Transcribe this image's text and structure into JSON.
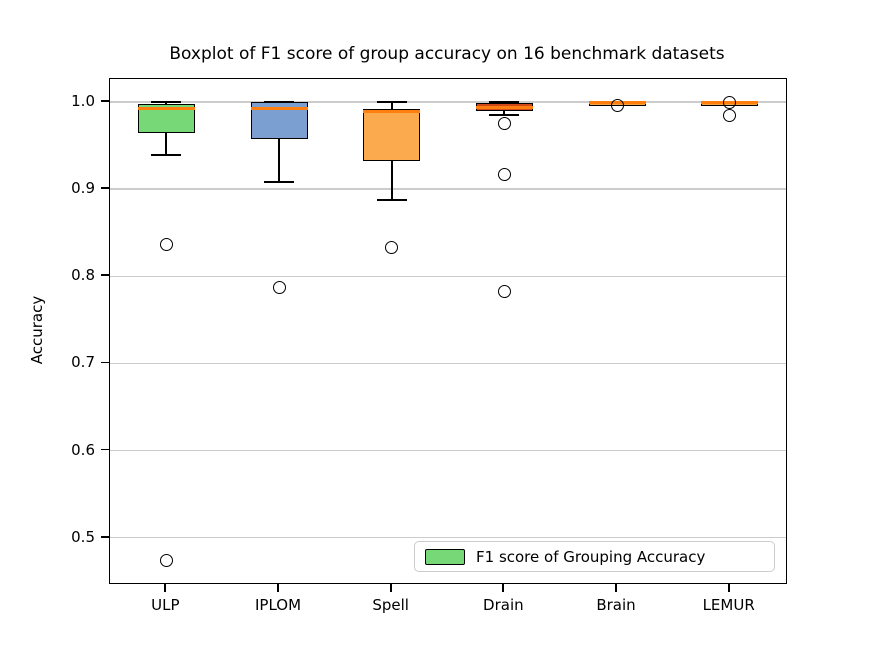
{
  "figure": {
    "background": "#ffffff"
  },
  "chart_data": {
    "type": "boxplot",
    "title": "Boxplot of F1 score of group accuracy on 16 benchmark datasets",
    "xlabel": "",
    "ylabel": "Accuracy",
    "categories": [
      "ULP",
      "IPLOM",
      "Spell",
      "Drain",
      "Brain",
      "LEMUR"
    ],
    "yticks": [
      1.0,
      0.9,
      0.8,
      0.7,
      0.6,
      0.5
    ],
    "ylim": [
      0.448,
      1.0264
    ],
    "grid": "horizontal",
    "colors": {
      "median": "#ff7f0e",
      "box_edge": "#000000",
      "gridline": "#cccccc",
      "outlier_edge": "#000000"
    },
    "legend": {
      "label": "F1 score of Grouping Accuracy",
      "swatch_color": "#77d877",
      "position": "lower-right"
    },
    "series": [
      {
        "name": "ULP",
        "fill": "#77d877",
        "whislo": 0.939,
        "q1": 0.964,
        "med": 0.9925,
        "q3": 0.998,
        "whishi": 1.0,
        "outliers": [
          0.836,
          0.474
        ]
      },
      {
        "name": "IPLOM",
        "fill": "#7b9fd0",
        "whislo": 0.908,
        "q1": 0.957,
        "med": 0.993,
        "q3": 0.9995,
        "whishi": 1.0,
        "outliers": [
          0.787
        ]
      },
      {
        "name": "Spell",
        "fill": "#fbaa4d",
        "whislo": 0.887,
        "q1": 0.932,
        "med": 0.989,
        "q3": 0.9915,
        "whishi": 0.9995,
        "outliers": [
          0.833
        ]
      },
      {
        "name": "Drain",
        "fill": "#d1491b",
        "whislo": 0.9855,
        "q1": 0.9895,
        "med": 0.994,
        "q3": 0.9993,
        "whishi": 1.0,
        "outliers": [
          0.975,
          0.917,
          0.783
        ]
      },
      {
        "name": "Brain",
        "fill": "#f9a347",
        "whislo": 0.998,
        "q1": 0.9987,
        "med": 0.9993,
        "q3": 0.9998,
        "whishi": 1.0,
        "outliers": [
          0.9955
        ]
      },
      {
        "name": "LEMUR",
        "fill": "#f9a347",
        "whislo": 0.999,
        "q1": 0.9993,
        "med": 0.9996,
        "q3": 0.9999,
        "whishi": 1.0,
        "outliers": [
          1.0,
          0.984
        ]
      }
    ]
  }
}
